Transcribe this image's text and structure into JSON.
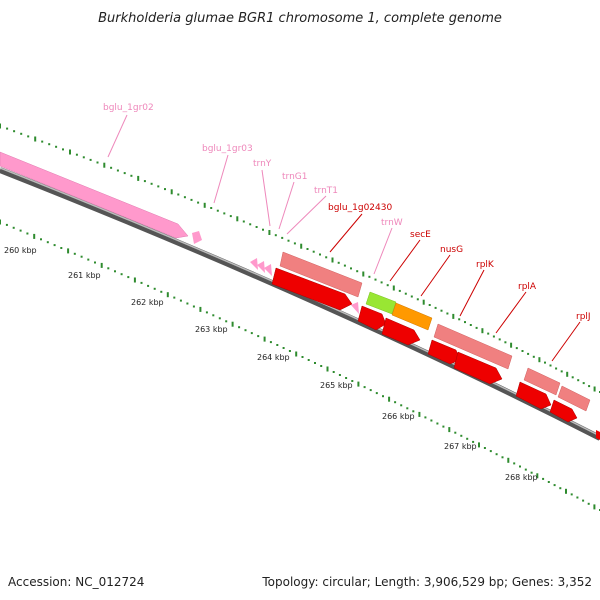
{
  "title": "Burkholderia glumae BGR1 chromosome 1, complete genome",
  "footer": {
    "accession": "Accession: NC_012724",
    "topology": "Topology: circular; Length: 3,906,529 bp; Genes: 3,352"
  },
  "colors": {
    "backbone": "#777777",
    "ticks": "#2e8b2e",
    "cds": "#ee0000",
    "cds_light": "#f08080",
    "rna": "#ff99cc",
    "secE": "#99e633",
    "nusG": "#ff9900",
    "label_red": "#cc0000",
    "label_pink": "#ee88bb"
  },
  "scale_labels": [
    "260 kbp",
    "261 kbp",
    "262 kbp",
    "263 kbp",
    "264 kbp",
    "265 kbp",
    "266 kbp",
    "267 kbp",
    "268 kbp"
  ],
  "features": [
    {
      "id": "bglu_1gr02",
      "label": "bglu_1gr02",
      "kind": "rna"
    },
    {
      "id": "bglu_1gr03",
      "label": "bglu_1gr03",
      "kind": "rna"
    },
    {
      "id": "trnY",
      "label": "trnY",
      "kind": "rna"
    },
    {
      "id": "trnG1",
      "label": "trnG1",
      "kind": "rna"
    },
    {
      "id": "trnT1",
      "label": "trnT1",
      "kind": "rna"
    },
    {
      "id": "bglu_1g02430",
      "label": "bglu_1g02430",
      "kind": "cds"
    },
    {
      "id": "trnW",
      "label": "trnW",
      "kind": "rna"
    },
    {
      "id": "secE",
      "label": "secE",
      "kind": "cds"
    },
    {
      "id": "nusG",
      "label": "nusG",
      "kind": "cds"
    },
    {
      "id": "rplK",
      "label": "rplK",
      "kind": "cds"
    },
    {
      "id": "rplA",
      "label": "rplA",
      "kind": "cds"
    },
    {
      "id": "rplJ",
      "label": "rplJ",
      "kind": "cds"
    }
  ]
}
